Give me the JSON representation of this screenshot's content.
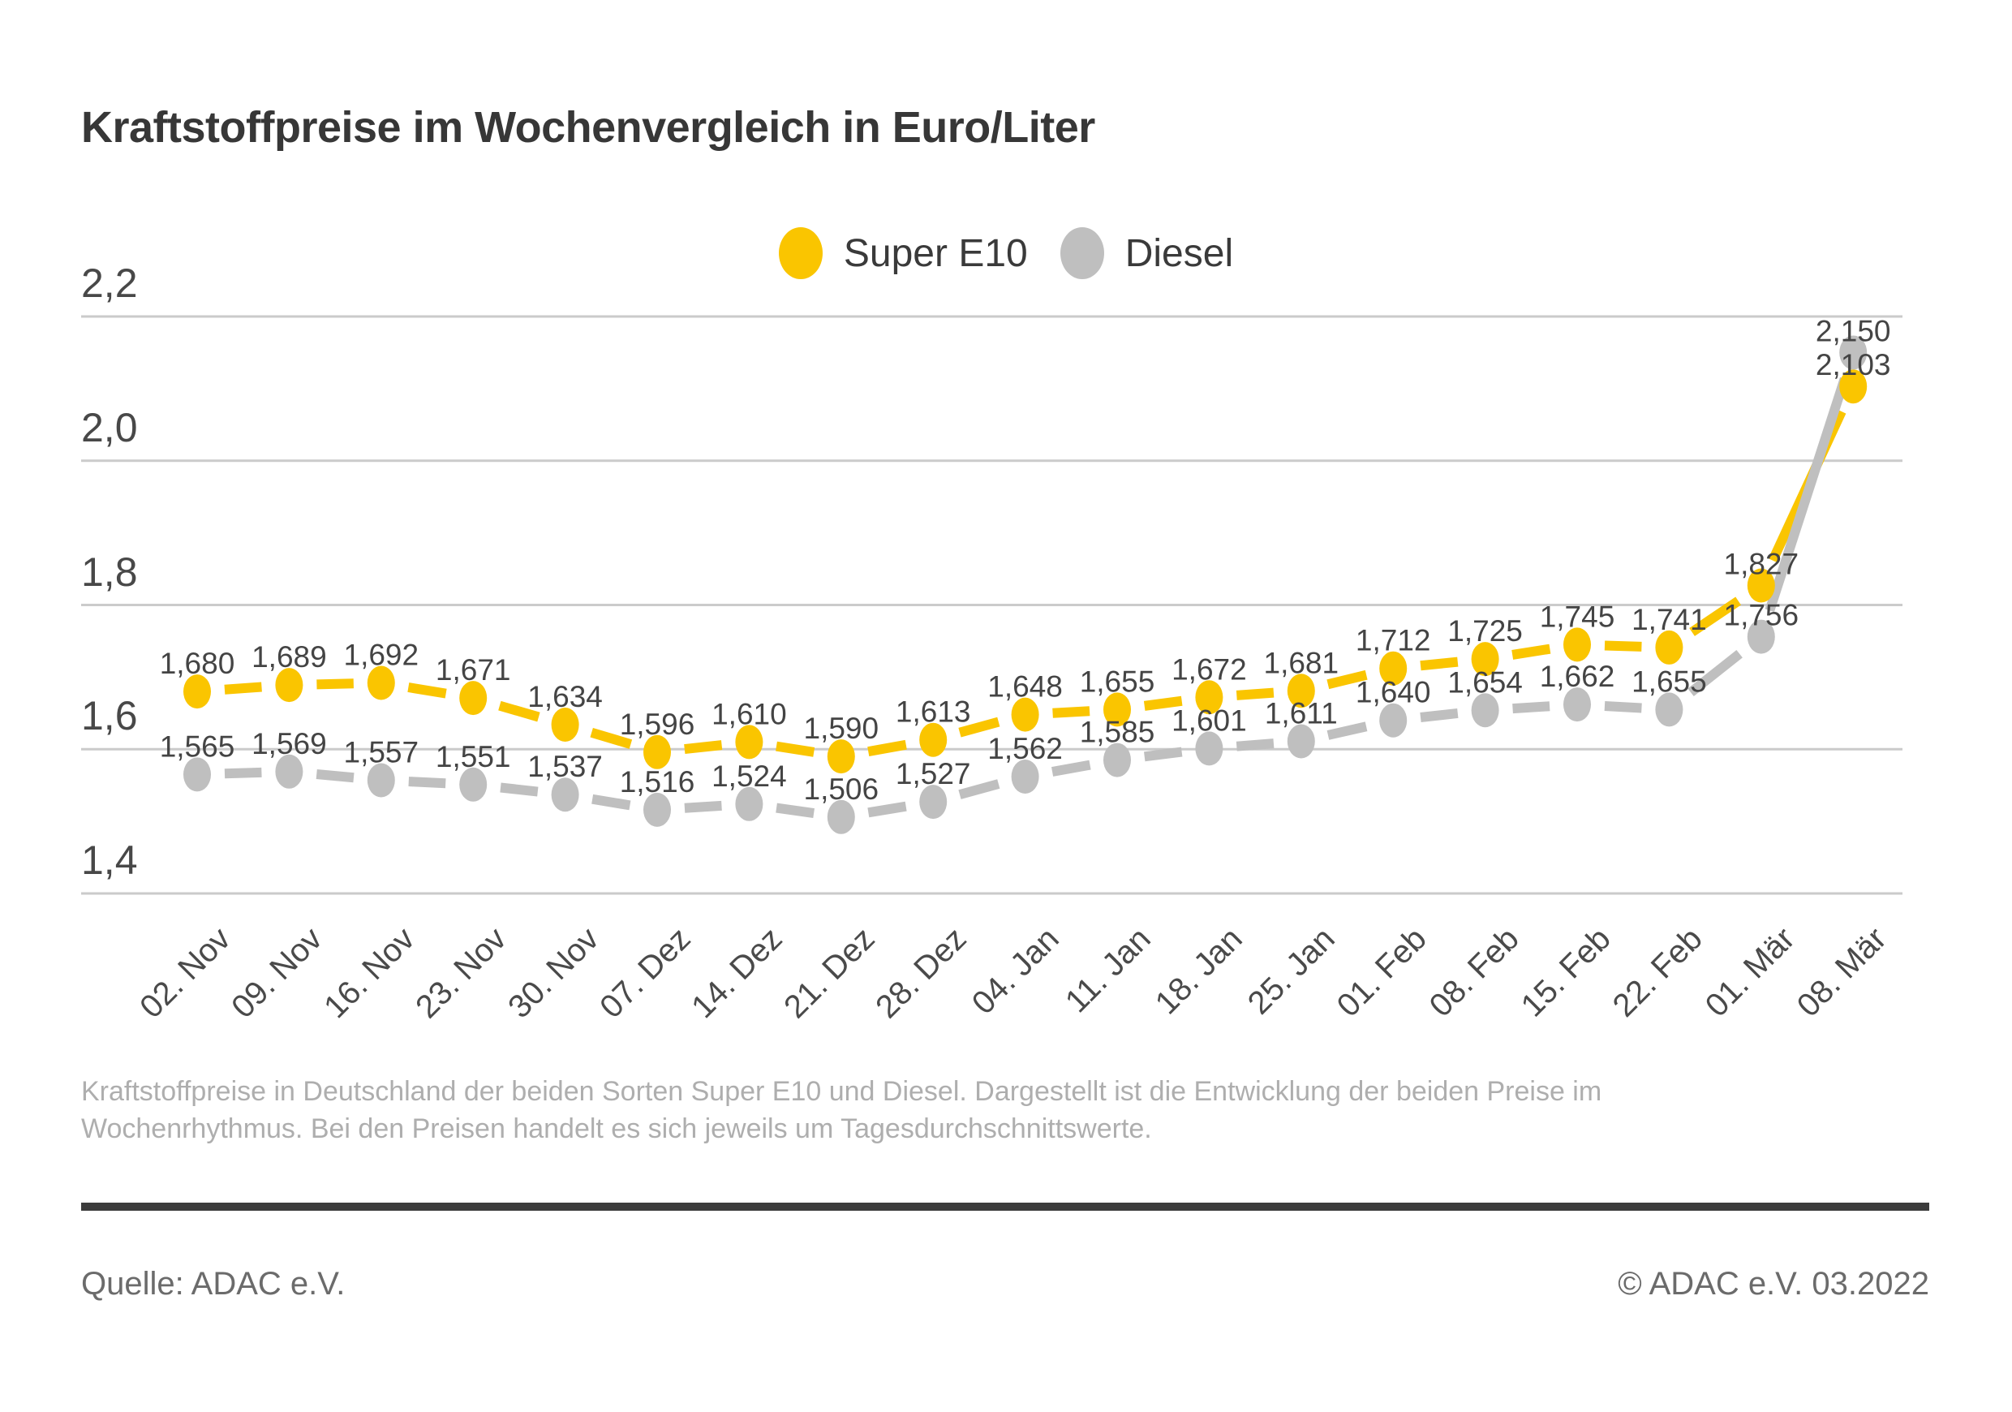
{
  "title": "Kraftstoffpreise im Wochenvergleich in Euro/Liter",
  "legend": [
    {
      "label": "Super E10",
      "color": "#FAC500"
    },
    {
      "label": "Diesel",
      "color": "#BFBFBF"
    }
  ],
  "chart_data": {
    "type": "line",
    "x": [
      "02. Nov",
      "09. Nov",
      "16. Nov",
      "23. Nov",
      "30. Nov",
      "07. Dez",
      "14. Dez",
      "21. Dez",
      "28. Dez",
      "04. Jan",
      "11. Jan",
      "18. Jan",
      "25. Jan",
      "01. Feb",
      "08. Feb",
      "15. Feb",
      "22. Feb",
      "01. Mär",
      "08. Mär"
    ],
    "series": [
      {
        "name": "Super E10",
        "color": "#FAC500",
        "values": [
          1.68,
          1.689,
          1.692,
          1.671,
          1.634,
          1.596,
          1.61,
          1.59,
          1.613,
          1.648,
          1.655,
          1.672,
          1.681,
          1.712,
          1.725,
          1.745,
          1.741,
          1.827,
          2.103
        ],
        "value_labels": [
          "1,680",
          "1,689",
          "1,692",
          "1,671",
          "1,634",
          "1,596",
          "1,610",
          "1,590",
          "1,613",
          "1,648",
          "1,655",
          "1,672",
          "1,681",
          "1,712",
          "1,725",
          "1,745",
          "1,741",
          "1,827",
          "2,103"
        ]
      },
      {
        "name": "Diesel",
        "color": "#BFBFBF",
        "values": [
          1.565,
          1.569,
          1.557,
          1.551,
          1.537,
          1.516,
          1.524,
          1.506,
          1.527,
          1.562,
          1.585,
          1.601,
          1.611,
          1.64,
          1.654,
          1.662,
          1.655,
          1.756,
          2.15
        ],
        "value_labels": [
          "1,565",
          "1,569",
          "1,557",
          "1,551",
          "1,537",
          "1,516",
          "1,524",
          "1,506",
          "1,527",
          "1,562",
          "1,585",
          "1,601",
          "1,611",
          "1,640",
          "1,654",
          "1,662",
          "1,655",
          "1,756",
          "2,150"
        ]
      }
    ],
    "yticks": [
      "2,2",
      "2,0",
      "1,8",
      "1,6",
      "1,4"
    ],
    "ytick_values": [
      2.2,
      2.0,
      1.8,
      1.6,
      1.4
    ],
    "ylim": [
      1.4,
      2.2
    ],
    "grid": true,
    "gridline_color": "#CBCBCB",
    "legend_position": "top-center",
    "title": "Kraftstoffpreise im Wochenvergleich in Euro/Liter",
    "xlabel": "",
    "ylabel": "Euro/Liter"
  },
  "footnote": {
    "line1": "Kraftstoffpreise in Deutschland der beiden Sorten Super E10 und Diesel. Dargestellt ist die Entwicklung der beiden Preise im",
    "line2": "Wochenrhythmus. Bei den Preisen handelt es sich jeweils um Tagesdurchschnittswerte."
  },
  "source_left": "Quelle: ADAC e.V.",
  "source_right": "© ADAC e.V. 03.2022"
}
